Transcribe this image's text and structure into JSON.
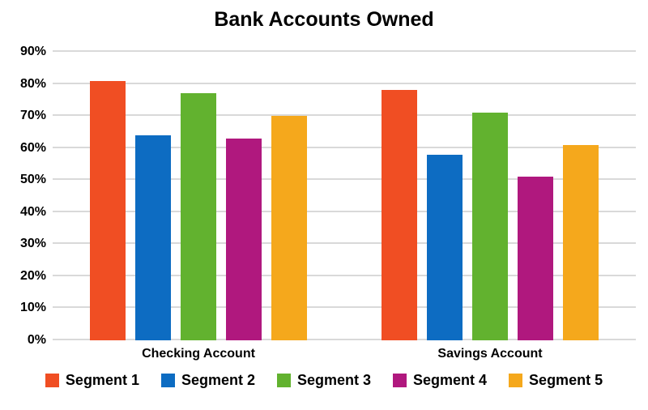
{
  "chart_data": {
    "type": "bar",
    "title": "Bank Accounts Owned",
    "categories": [
      "Checking Account",
      "Savings Account"
    ],
    "series": [
      {
        "name": "Segment 1",
        "color": "#F04E23",
        "values": [
          81,
          78
        ]
      },
      {
        "name": "Segment 2",
        "color": "#0D6CC2",
        "values": [
          64,
          58
        ]
      },
      {
        "name": "Segment 3",
        "color": "#62B22F",
        "values": [
          77,
          71
        ]
      },
      {
        "name": "Segment 4",
        "color": "#B0187E",
        "values": [
          63,
          51
        ]
      },
      {
        "name": "Segment 5",
        "color": "#F5A81C",
        "values": [
          70,
          61
        ]
      }
    ],
    "y_axis": {
      "min": 0,
      "max": 90,
      "step": 10,
      "tick_labels": [
        "0%",
        "10%",
        "20%",
        "30%",
        "40%",
        "50%",
        "60%",
        "70%",
        "80%",
        "90%"
      ],
      "unit": "%"
    },
    "grid": true,
    "legend_position": "bottom",
    "colors": {
      "background": "#FFFFFF",
      "gridline": "#D9D9D9",
      "text": "#000000"
    }
  }
}
